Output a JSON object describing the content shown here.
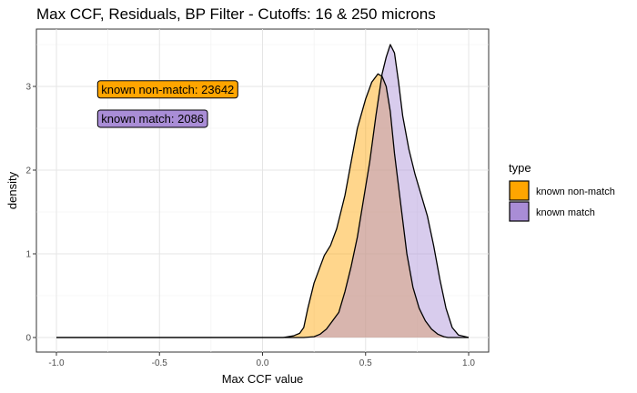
{
  "chart_data": {
    "type": "area",
    "title": "Max CCF, Residuals, BP Filter - Cutoffs: 16 & 250 microns",
    "xlabel": "Max CCF value",
    "ylabel": "density",
    "xlim": [
      -1.0,
      1.0
    ],
    "ylim": [
      0,
      3.5
    ],
    "x_ticks": [
      -1.0,
      -0.5,
      0.0,
      0.5,
      1.0
    ],
    "x_tick_labels": [
      "-1.0",
      "-0.5",
      "0.0",
      "0.5",
      "1.0"
    ],
    "y_ticks": [
      0,
      1,
      2,
      3
    ],
    "y_tick_labels": [
      "0",
      "1",
      "2",
      "3"
    ],
    "grid": true,
    "legend": {
      "title": "type",
      "position": "right",
      "entries": [
        {
          "label": "known non-match",
          "color": "#FFA500"
        },
        {
          "label": "known match",
          "color": "#A98DD6"
        }
      ]
    },
    "annotations": [
      {
        "text": "known non-match: 23642",
        "x": -0.8,
        "y": 2.97,
        "fill": "#FFA500"
      },
      {
        "text": "known match: 2086",
        "x": -0.8,
        "y": 2.62,
        "fill": "#A98DD6"
      }
    ],
    "series": [
      {
        "name": "known non-match",
        "color": "#FFA500",
        "x": [
          -1.0,
          0.1,
          0.15,
          0.18,
          0.2,
          0.22,
          0.25,
          0.28,
          0.3,
          0.33,
          0.36,
          0.4,
          0.43,
          0.46,
          0.5,
          0.53,
          0.56,
          0.58,
          0.6,
          0.62,
          0.64,
          0.67,
          0.7,
          0.73,
          0.76,
          0.79,
          0.82,
          0.85,
          0.88,
          0.9,
          1.0
        ],
        "y": [
          0,
          0,
          0.02,
          0.05,
          0.12,
          0.35,
          0.65,
          0.85,
          0.98,
          1.1,
          1.3,
          1.7,
          2.1,
          2.5,
          2.85,
          3.05,
          3.15,
          3.12,
          3.0,
          2.7,
          2.2,
          1.6,
          1.0,
          0.6,
          0.35,
          0.2,
          0.1,
          0.04,
          0.01,
          0.0,
          0
        ]
      },
      {
        "name": "known match",
        "color": "#A98DD6",
        "x": [
          -1.0,
          0.2,
          0.25,
          0.28,
          0.31,
          0.34,
          0.37,
          0.4,
          0.43,
          0.46,
          0.49,
          0.52,
          0.55,
          0.58,
          0.6,
          0.62,
          0.64,
          0.66,
          0.68,
          0.71,
          0.74,
          0.77,
          0.8,
          0.83,
          0.86,
          0.89,
          0.92,
          0.95,
          1.0
        ],
        "y": [
          0,
          0,
          0.01,
          0.04,
          0.1,
          0.2,
          0.3,
          0.55,
          0.85,
          1.2,
          1.65,
          2.1,
          2.65,
          3.15,
          3.35,
          3.5,
          3.4,
          3.05,
          2.65,
          2.25,
          1.95,
          1.7,
          1.45,
          1.1,
          0.7,
          0.35,
          0.12,
          0.03,
          0
        ]
      }
    ]
  }
}
